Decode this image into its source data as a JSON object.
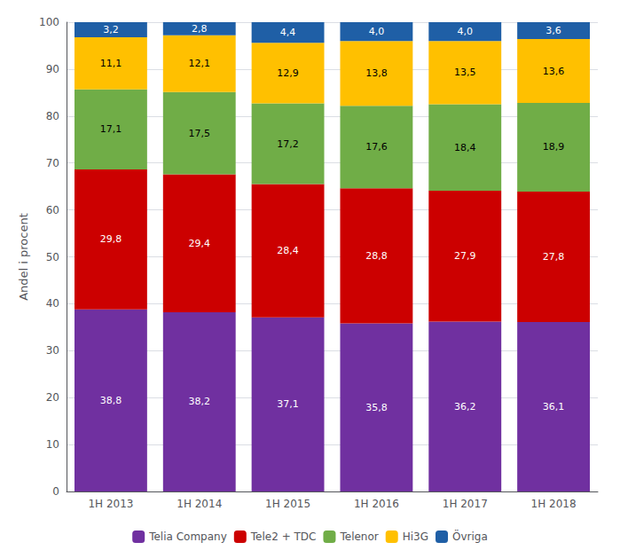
{
  "chart_data": {
    "type": "bar",
    "stacked": true,
    "ylabel": "Andel i procent",
    "categories": [
      "1H 2013",
      "1H 2014",
      "1H 2015",
      "1H 2016",
      "1H 2017",
      "1H 2018"
    ],
    "series": [
      {
        "name": "Telia Company",
        "color": "#7030a0",
        "values": [
          38.8,
          38.2,
          37.1,
          35.8,
          36.2,
          36.1
        ],
        "value_labels": [
          "38,8",
          "38,2",
          "37,1",
          "35,8",
          "36,2",
          "36,1"
        ]
      },
      {
        "name": "Tele2 + TDC",
        "color": "#cc0000",
        "values": [
          29.8,
          29.4,
          28.4,
          28.8,
          27.9,
          27.8
        ],
        "value_labels": [
          "29,8",
          "29,4",
          "28,4",
          "28,8",
          "27,9",
          "27,8"
        ]
      },
      {
        "name": "Telenor",
        "color": "#70ad47",
        "values": [
          17.1,
          17.5,
          17.2,
          17.6,
          18.4,
          18.9
        ],
        "value_labels": [
          "17,1",
          "17,5",
          "17,2",
          "17,6",
          "18,4",
          "18,9"
        ]
      },
      {
        "name": "Hi3G",
        "color": "#ffc000",
        "values": [
          11.1,
          12.1,
          12.9,
          13.8,
          13.5,
          13.6
        ],
        "value_labels": [
          "11,1",
          "12,1",
          "12,9",
          "13,8",
          "13,5",
          "13,6"
        ]
      },
      {
        "name": "Övriga",
        "color": "#1f5fa6",
        "values": [
          3.2,
          2.8,
          4.4,
          4.0,
          4.0,
          3.6
        ],
        "value_labels": [
          "3,2",
          "2,8",
          "4,4",
          "4,0",
          "4,0",
          "3,6"
        ]
      }
    ],
    "ylim": [
      0,
      100
    ],
    "yticks": [
      0,
      10,
      20,
      30,
      40,
      50,
      60,
      70,
      80,
      90,
      100
    ],
    "grid": true,
    "data_labels": true,
    "legend": "bottom"
  }
}
